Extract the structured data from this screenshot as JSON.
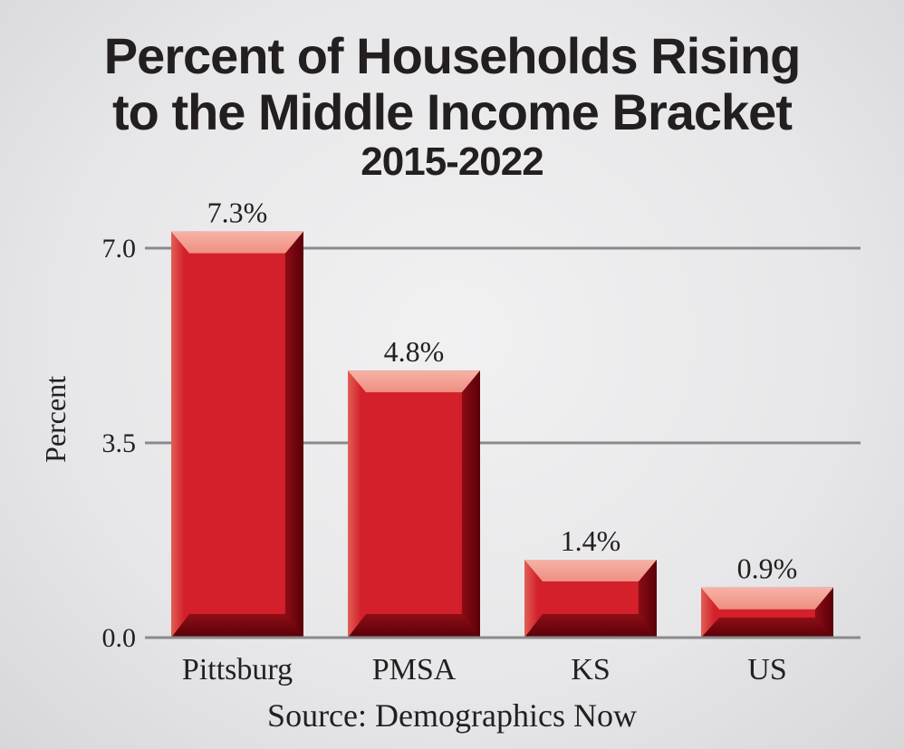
{
  "header": {
    "title_line1": "Percent of Households Rising",
    "title_line2": "to the Middle Income Bracket",
    "subtitle": "2015-2022"
  },
  "footer": {
    "source": "Source: Demographics Now"
  },
  "colors": {
    "bar_main": "#d3202b",
    "bar_dark": "#5a0008",
    "bar_light": "#ef8f82",
    "grid": "#8a8a8c",
    "text": "#231f20"
  },
  "chart_data": {
    "type": "bar",
    "title": "Percent of Households Rising to the Middle Income Bracket",
    "subtitle": "2015-2022",
    "categories": [
      "Pittsburg",
      "PMSA",
      "KS",
      "US"
    ],
    "values": [
      7.3,
      4.8,
      1.4,
      0.9
    ],
    "data_labels": [
      "7.3%",
      "4.8%",
      "1.4%",
      "0.9%"
    ],
    "ylabel": "Percent",
    "xlabel": "",
    "ylim": [
      0,
      7.0
    ],
    "yticks": [
      0.0,
      3.5,
      7.0
    ],
    "ytick_labels": [
      "0.0",
      "3.5",
      "7.0"
    ],
    "grid": true,
    "source": "Source: Demographics Now"
  }
}
